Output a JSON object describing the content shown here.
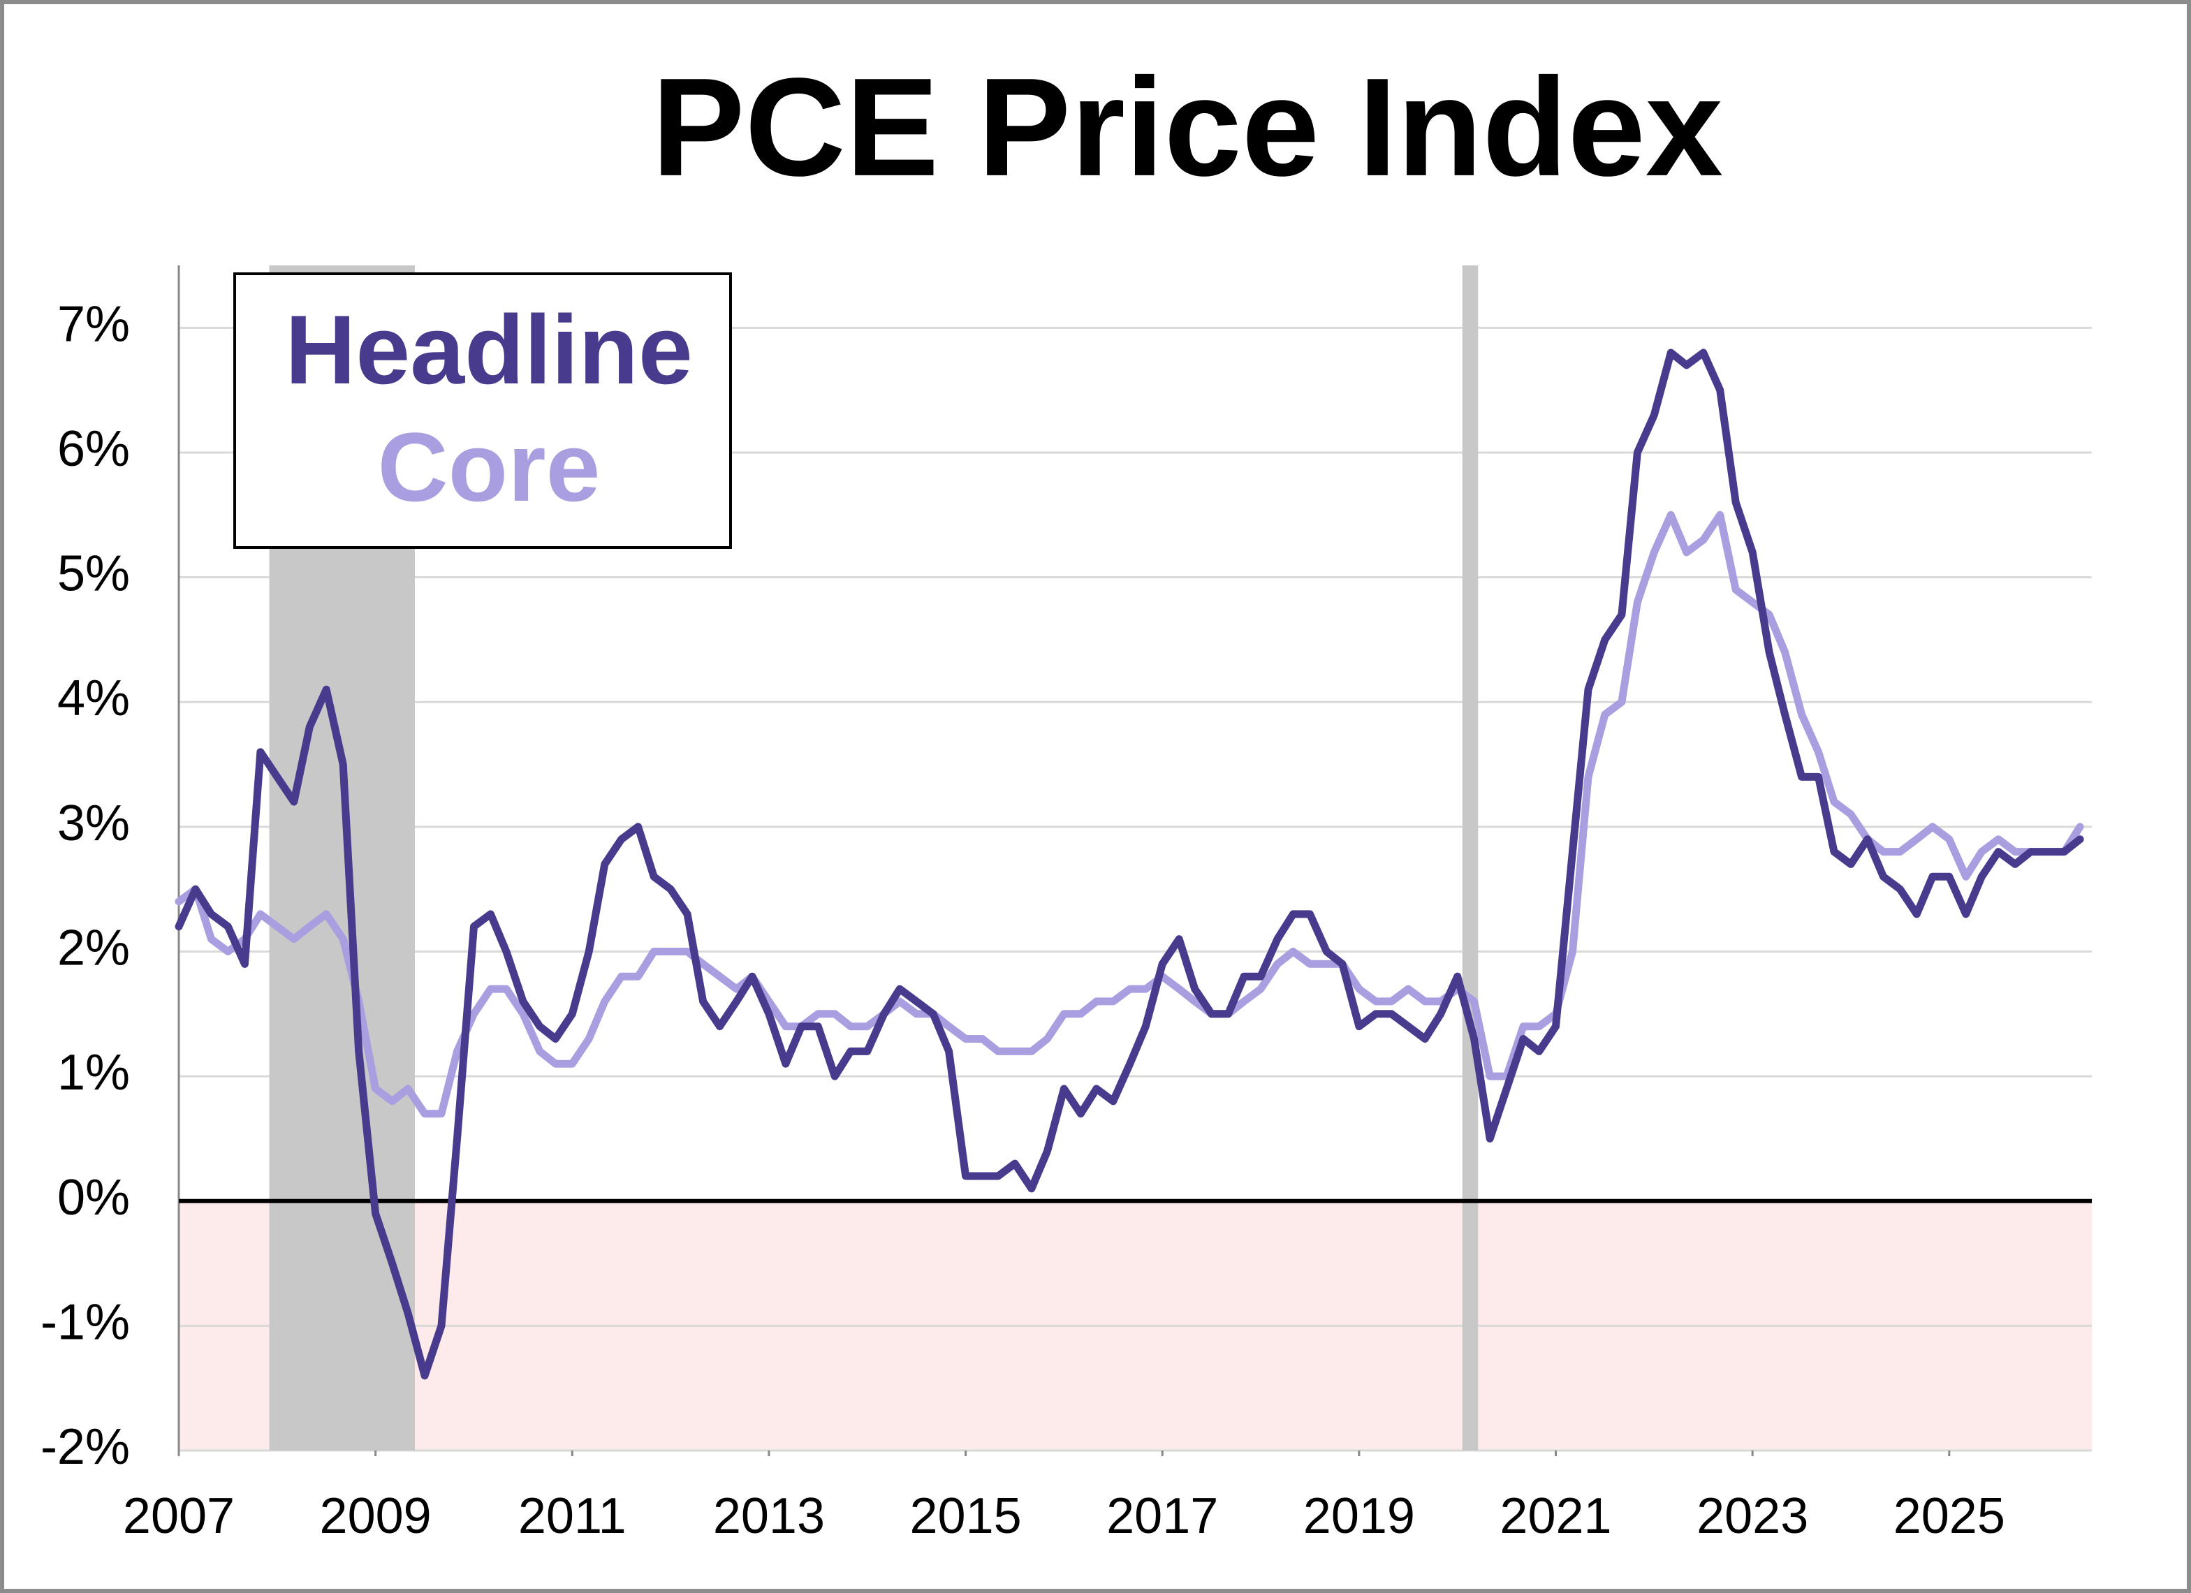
{
  "chart_data": {
    "type": "line",
    "title": "PCE Price Index",
    "x": [
      2007,
      2007.17,
      2007.33,
      2007.5,
      2007.67,
      2007.83,
      2008,
      2008.17,
      2008.33,
      2008.5,
      2008.67,
      2008.83,
      2009,
      2009.17,
      2009.33,
      2009.5,
      2009.67,
      2009.83,
      2010,
      2010.17,
      2010.33,
      2010.5,
      2010.67,
      2010.83,
      2011,
      2011.17,
      2011.33,
      2011.5,
      2011.67,
      2011.83,
      2012,
      2012.17,
      2012.33,
      2012.5,
      2012.67,
      2012.83,
      2013,
      2013.17,
      2013.33,
      2013.5,
      2013.67,
      2013.83,
      2014,
      2014.17,
      2014.33,
      2014.5,
      2014.67,
      2014.83,
      2015,
      2015.17,
      2015.33,
      2015.5,
      2015.67,
      2015.83,
      2016,
      2016.17,
      2016.33,
      2016.5,
      2016.67,
      2016.83,
      2017,
      2017.17,
      2017.33,
      2017.5,
      2017.67,
      2017.83,
      2018,
      2018.17,
      2018.33,
      2018.5,
      2018.67,
      2018.83,
      2019,
      2019.17,
      2019.33,
      2019.5,
      2019.67,
      2019.83,
      2020,
      2020.17,
      2020.33,
      2020.5,
      2020.67,
      2020.83,
      2021,
      2021.17,
      2021.33,
      2021.5,
      2021.67,
      2021.83,
      2022,
      2022.17,
      2022.33,
      2022.5,
      2022.67,
      2022.83,
      2023,
      2023.17,
      2023.33,
      2023.5,
      2023.67,
      2023.83,
      2024,
      2024.17,
      2024.33,
      2024.5,
      2024.67,
      2024.83,
      2025,
      2025.17,
      2025.33,
      2025.5,
      2025.67,
      2025.83,
      2026,
      2026.17,
      2026.33
    ],
    "series": [
      {
        "name": "Headline",
        "color": "#483a8c",
        "values": [
          2.2,
          2.5,
          2.3,
          2.2,
          1.9,
          3.6,
          3.4,
          3.2,
          3.8,
          4.1,
          3.5,
          1.2,
          -0.1,
          -0.5,
          -0.9,
          -1.4,
          -1.0,
          0.5,
          2.2,
          2.3,
          2.0,
          1.6,
          1.4,
          1.3,
          1.5,
          2.0,
          2.7,
          2.9,
          3.0,
          2.6,
          2.5,
          2.3,
          1.6,
          1.4,
          1.6,
          1.8,
          1.5,
          1.1,
          1.4,
          1.4,
          1.0,
          1.2,
          1.2,
          1.5,
          1.7,
          1.6,
          1.5,
          1.2,
          0.2,
          0.2,
          0.2,
          0.3,
          0.1,
          0.4,
          0.9,
          0.7,
          0.9,
          0.8,
          1.1,
          1.4,
          1.9,
          2.1,
          1.7,
          1.5,
          1.5,
          1.8,
          1.8,
          2.1,
          2.3,
          2.3,
          2.0,
          1.9,
          1.4,
          1.5,
          1.5,
          1.4,
          1.3,
          1.5,
          1.8,
          1.3,
          0.5,
          0.9,
          1.3,
          1.2,
          1.4,
          2.8,
          4.1,
          4.5,
          4.7,
          6.0,
          6.3,
          6.8,
          6.7,
          6.8,
          6.5,
          5.6,
          5.2,
          4.4,
          3.9,
          3.4,
          3.4,
          2.8,
          2.7,
          2.9,
          2.6,
          2.5,
          2.3,
          2.6,
          2.6,
          2.3,
          2.6,
          2.8,
          2.7,
          2.8,
          2.8,
          2.8,
          2.9
        ]
      },
      {
        "name": "Core",
        "color": "#a99ee0",
        "values": [
          2.4,
          2.5,
          2.1,
          2.0,
          2.1,
          2.3,
          2.2,
          2.1,
          2.2,
          2.3,
          2.1,
          1.6,
          0.9,
          0.8,
          0.9,
          0.7,
          0.7,
          1.2,
          1.5,
          1.7,
          1.7,
          1.5,
          1.2,
          1.1,
          1.1,
          1.3,
          1.6,
          1.8,
          1.8,
          2.0,
          2.0,
          2.0,
          1.9,
          1.8,
          1.7,
          1.8,
          1.6,
          1.4,
          1.4,
          1.5,
          1.5,
          1.4,
          1.4,
          1.5,
          1.6,
          1.5,
          1.5,
          1.4,
          1.3,
          1.3,
          1.2,
          1.2,
          1.2,
          1.3,
          1.5,
          1.5,
          1.6,
          1.6,
          1.7,
          1.7,
          1.8,
          1.7,
          1.6,
          1.5,
          1.5,
          1.6,
          1.7,
          1.9,
          2.0,
          1.9,
          1.9,
          1.9,
          1.7,
          1.6,
          1.6,
          1.7,
          1.6,
          1.6,
          1.7,
          1.6,
          1.0,
          1.0,
          1.4,
          1.4,
          1.5,
          2.0,
          3.4,
          3.9,
          4.0,
          4.8,
          5.2,
          5.5,
          5.2,
          5.3,
          5.5,
          4.9,
          4.8,
          4.7,
          4.4,
          3.9,
          3.6,
          3.2,
          3.1,
          2.9,
          2.8,
          2.8,
          2.9,
          3.0,
          2.9,
          2.6,
          2.8,
          2.9,
          2.8,
          2.8,
          2.8,
          2.8,
          3.0
        ]
      }
    ],
    "xlim": [
      2007,
      2026.45
    ],
    "xticks": [
      2007,
      2009,
      2011,
      2013,
      2015,
      2017,
      2019,
      2021,
      2023,
      2025
    ],
    "ylim": [
      -2,
      7.5
    ],
    "yticks": [
      {
        "value": -2,
        "label": "-2%"
      },
      {
        "value": -1,
        "label": "-1%"
      },
      {
        "value": 0,
        "label": "0%"
      },
      {
        "value": 1,
        "label": "1%"
      },
      {
        "value": 2,
        "label": "2%"
      },
      {
        "value": 3,
        "label": "3%"
      },
      {
        "value": 4,
        "label": "4%"
      },
      {
        "value": 5,
        "label": "5%"
      },
      {
        "value": 6,
        "label": "6%"
      },
      {
        "value": 7,
        "label": "7%"
      }
    ],
    "grid": true,
    "shaded_periods": [
      [
        2007.92,
        2009.4
      ],
      [
        2020.05,
        2020.21
      ]
    ],
    "shade_color": "#c8c8c8",
    "negative_fill": "#fdeaea",
    "legend": "upper left"
  }
}
